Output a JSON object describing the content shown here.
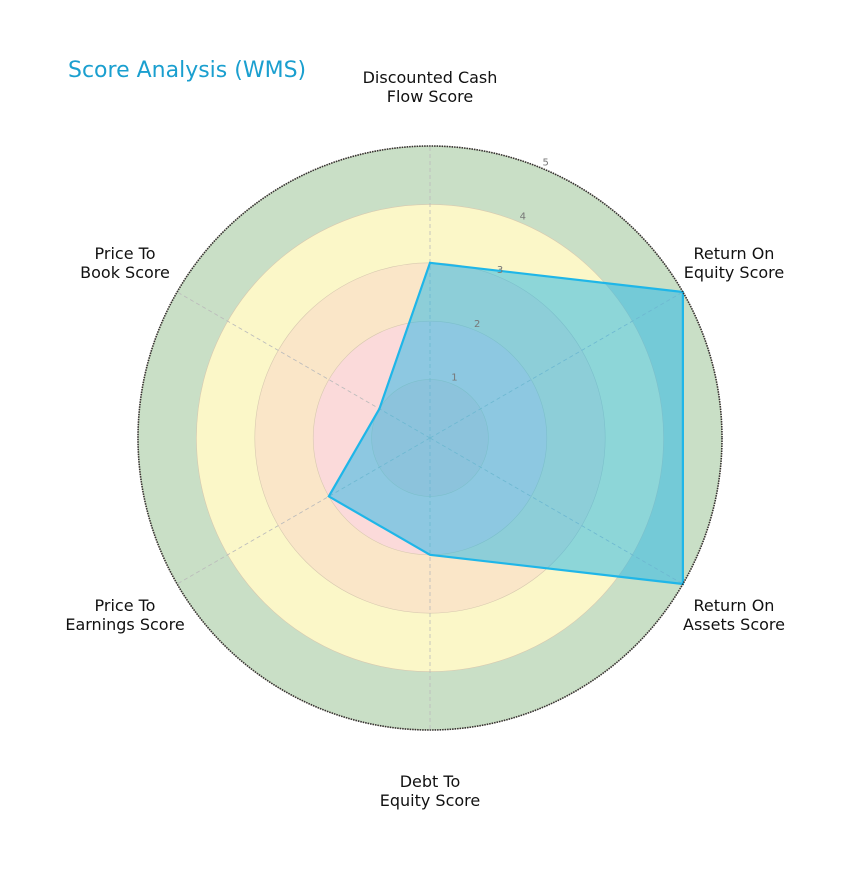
{
  "chart_data": {
    "type": "radar",
    "title": "Score Analysis (WMS)",
    "categories": [
      "Discounted Cash Flow Score",
      "Return On Equity Score",
      "Return On Assets Score",
      "Debt To Equity Score",
      "Price To Earnings Score",
      "Price To Book Score"
    ],
    "series": [
      {
        "name": "WMS",
        "values": [
          3,
          5,
          5,
          2,
          2,
          1
        ],
        "color": "#1fb6e8"
      }
    ],
    "rlim": [
      0,
      5
    ],
    "r_ticks": [
      1,
      2,
      3,
      4,
      5
    ],
    "bands": [
      {
        "from": 0,
        "to": 1,
        "color": "#f9d1d1"
      },
      {
        "from": 1,
        "to": 2,
        "color": "#fbdada"
      },
      {
        "from": 2,
        "to": 3,
        "color": "#fae6c8"
      },
      {
        "from": 3,
        "to": 4,
        "color": "#fbf7c8"
      },
      {
        "from": 4,
        "to": 5,
        "color": "#c9dfc6"
      }
    ],
    "grid": true,
    "legend": false
  },
  "title": "Score Analysis (WMS)",
  "labels": {
    "dcf": "Discounted Cash\nFlow Score",
    "roe": "Return On\nEquity Score",
    "roa": "Return On\nAssets Score",
    "de": "Debt To\nEquity Score",
    "pe": "Price To\nEarnings Score",
    "pb": "Price To\nBook Score"
  },
  "ticks": [
    "1",
    "2",
    "3",
    "4",
    "5"
  ]
}
